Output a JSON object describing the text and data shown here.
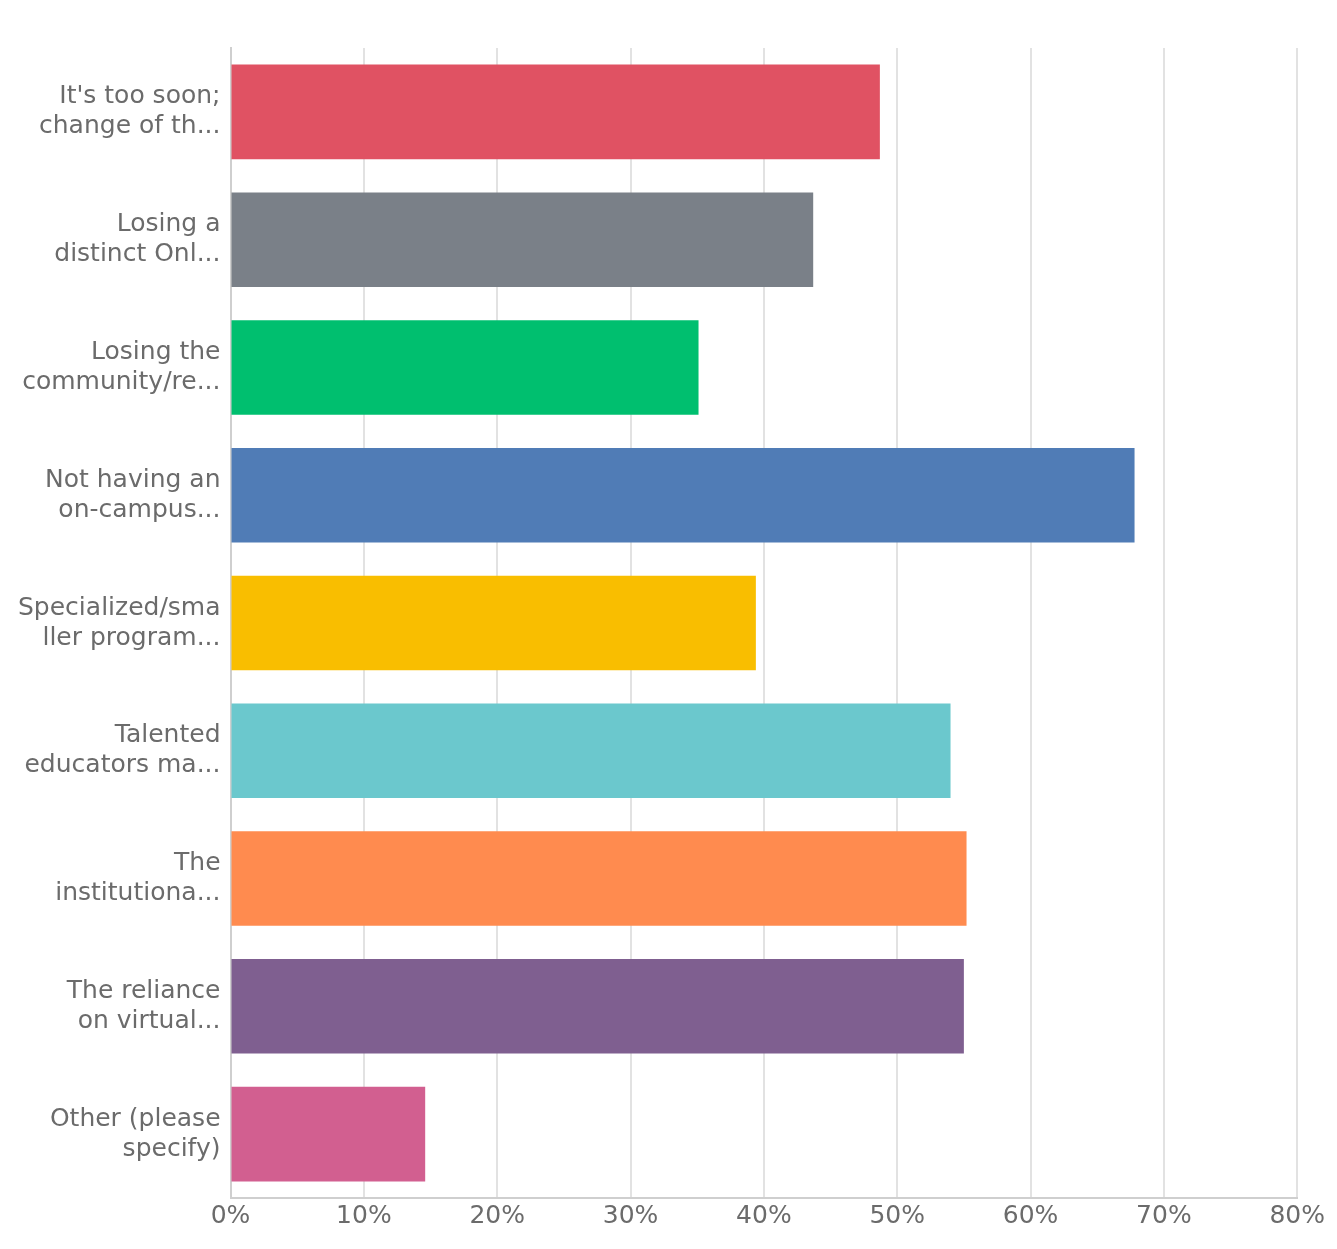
{
  "chart_data": {
    "type": "bar",
    "orientation": "horizontal",
    "categories": [
      "It's too soon;\nchange of th...",
      "Losing a\ndistinct Onl...",
      "Losing the\ncommunity/re...",
      "Not having an\non-campus...",
      "Specialized/sma\nller program...",
      "Talented\neducators ma...",
      "The\ninstitutiona...",
      "The reliance\non virtual...",
      "Other (please\nspecify)"
    ],
    "values": [
      48.7,
      43.7,
      35.1,
      67.8,
      39.4,
      54.0,
      55.2,
      55.0,
      14.6
    ],
    "colors": [
      "#e05263",
      "#7a8088",
      "#00bf6f",
      "#507cb6",
      "#f9be00",
      "#6bc8cd",
      "#ff8b4f",
      "#7f5f90",
      "#d25f90"
    ],
    "xlim": [
      0,
      80
    ],
    "xticks": [
      {
        "value": 0,
        "label": "0%"
      },
      {
        "value": 10,
        "label": "10%"
      },
      {
        "value": 20,
        "label": "20%"
      },
      {
        "value": 30,
        "label": "30%"
      },
      {
        "value": 40,
        "label": "40%"
      },
      {
        "value": 50,
        "label": "50%"
      },
      {
        "value": 60,
        "label": "60%"
      },
      {
        "value": 70,
        "label": "70%"
      },
      {
        "value": 80,
        "label": "80%"
      }
    ],
    "grid": "x"
  }
}
